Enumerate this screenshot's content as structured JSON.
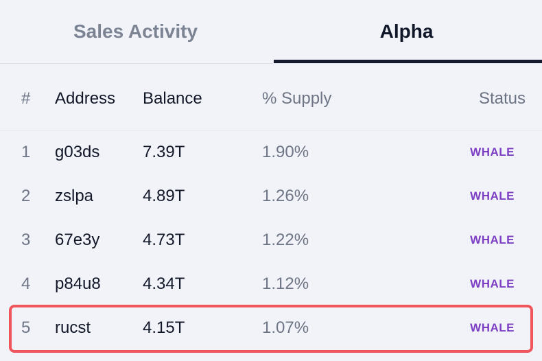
{
  "tabs": [
    {
      "label": "Sales Activity",
      "active": false
    },
    {
      "label": "Alpha",
      "active": true
    }
  ],
  "table": {
    "columns": [
      "#",
      "Address",
      "Balance",
      "% Supply",
      "Status"
    ],
    "rows": [
      {
        "rank": "1",
        "address": "g03ds",
        "balance": "7.39T",
        "supply": "1.90%",
        "status": "WHALE"
      },
      {
        "rank": "2",
        "address": "zslpa",
        "balance": "4.89T",
        "supply": "1.26%",
        "status": "WHALE"
      },
      {
        "rank": "3",
        "address": "67e3y",
        "balance": "4.73T",
        "supply": "1.22%",
        "status": "WHALE"
      },
      {
        "rank": "4",
        "address": "p84u8",
        "balance": "4.34T",
        "supply": "1.12%",
        "status": "WHALE"
      },
      {
        "rank": "5",
        "address": "rucst",
        "balance": "4.15T",
        "supply": "1.07%",
        "status": "WHALE"
      }
    ],
    "highlighted_row": 5
  },
  "colors": {
    "background": "#f1f3f9",
    "active_tab_text": "#0f1729",
    "inactive_tab_text": "#7c8494",
    "tab_underline": "#141a2b",
    "status_badge": "#7c3fc4",
    "highlight_border": "#f0555b"
  }
}
